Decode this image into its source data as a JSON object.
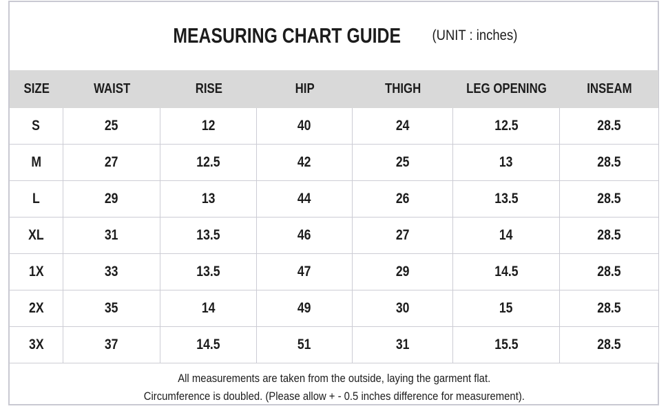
{
  "title": {
    "main": "MEASURING CHART GUIDE",
    "unit": "(UNIT : inches)"
  },
  "chart_data": {
    "type": "table",
    "title": "MEASURING CHART GUIDE (UNIT : inches)",
    "columns": [
      "SIZE",
      "WAIST",
      "RISE",
      "HIP",
      "THIGH",
      "LEG OPENING",
      "INSEAM"
    ],
    "rows": [
      [
        "S",
        "25",
        "12",
        "40",
        "24",
        "12.5",
        "28.5"
      ],
      [
        "M",
        "27",
        "12.5",
        "42",
        "25",
        "13",
        "28.5"
      ],
      [
        "L",
        "29",
        "13",
        "44",
        "26",
        "13.5",
        "28.5"
      ],
      [
        "XL",
        "31",
        "13.5",
        "46",
        "27",
        "14",
        "28.5"
      ],
      [
        "1X",
        "33",
        "13.5",
        "47",
        "29",
        "14.5",
        "28.5"
      ],
      [
        "2X",
        "35",
        "14",
        "49",
        "30",
        "15",
        "28.5"
      ],
      [
        "3X",
        "37",
        "14.5",
        "51",
        "31",
        "15.5",
        "28.5"
      ]
    ],
    "unit": "inches"
  },
  "footer": {
    "line1": "All measurements are taken from the outside, laying the garment flat.",
    "line2": "Circumference is doubled. (Please allow + - 0.5 inches difference for measurement)."
  },
  "colors": {
    "header_bg": "#d9d9d9",
    "grid_line": "#ccccd4",
    "frame_border": "#c9c9d2",
    "text": "#1c1c1c",
    "background": "#ffffff"
  }
}
